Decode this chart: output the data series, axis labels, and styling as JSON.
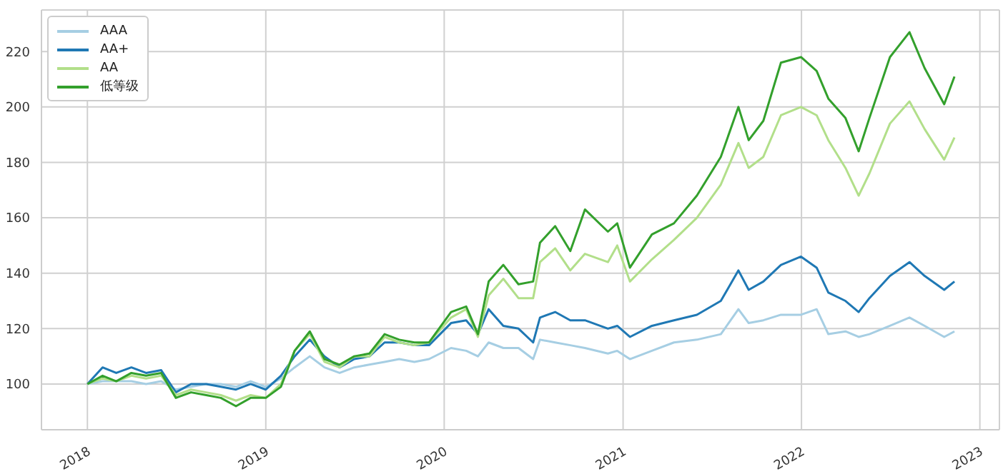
{
  "chart_data": {
    "type": "line",
    "x": [
      "2018-01-01",
      "2018-02-01",
      "2018-03-01",
      "2018-04-01",
      "2018-05-01",
      "2018-06-01",
      "2018-07-01",
      "2018-08-01",
      "2018-09-01",
      "2018-10-01",
      "2018-11-01",
      "2018-12-01",
      "2019-01-01",
      "2019-02-01",
      "2019-03-01",
      "2019-04-01",
      "2019-05-01",
      "2019-06-01",
      "2019-07-01",
      "2019-08-01",
      "2019-09-01",
      "2019-10-01",
      "2019-11-01",
      "2019-12-01",
      "2020-01-15",
      "2020-02-15",
      "2020-03-10",
      "2020-04-01",
      "2020-05-01",
      "2020-06-01",
      "2020-07-01",
      "2020-07-15",
      "2020-08-15",
      "2020-09-15",
      "2020-10-15",
      "2020-12-01",
      "2020-12-20",
      "2021-01-15",
      "2021-03-01",
      "2021-04-15",
      "2021-06-01",
      "2021-07-20",
      "2021-08-25",
      "2021-09-15",
      "2021-10-15",
      "2021-11-20",
      "2021-12-31",
      "2022-02-01",
      "2022-02-25",
      "2022-04-01",
      "2022-04-28",
      "2022-05-20",
      "2022-07-01",
      "2022-08-10",
      "2022-09-10",
      "2022-10-20",
      "2022-11-10"
    ],
    "series": [
      {
        "name": "AAA",
        "color": "#a6cee3",
        "values": [
          100,
          101,
          101,
          101,
          100,
          101,
          98,
          99,
          100,
          100,
          99,
          101,
          99,
          102,
          106,
          110,
          106,
          104,
          106,
          107,
          108,
          109,
          108,
          109,
          113,
          112,
          110,
          115,
          113,
          113,
          109,
          116,
          115,
          114,
          113,
          111,
          112,
          109,
          112,
          115,
          116,
          118,
          127,
          122,
          123,
          125,
          125,
          127,
          118,
          119,
          117,
          118,
          121,
          124,
          121,
          117,
          119
        ]
      },
      {
        "name": "AA+",
        "color": "#1f78b4",
        "values": [
          100,
          106,
          104,
          106,
          104,
          105,
          97,
          100,
          100,
          99,
          98,
          100,
          98,
          103,
          110,
          116,
          110,
          106,
          109,
          110,
          115,
          115,
          114,
          114,
          122,
          123,
          118,
          127,
          121,
          120,
          115,
          124,
          126,
          123,
          123,
          120,
          121,
          117,
          121,
          123,
          125,
          130,
          141,
          134,
          137,
          143,
          146,
          142,
          133,
          130,
          126,
          131,
          139,
          144,
          139,
          134,
          137
        ]
      },
      {
        "name": "AA",
        "color": "#b2df8a",
        "values": [
          100,
          102,
          101,
          103,
          102,
          103,
          96,
          98,
          97,
          96,
          94,
          96,
          95,
          100,
          112,
          118,
          108,
          106,
          110,
          110,
          117,
          115,
          114,
          115,
          124,
          127,
          117,
          132,
          138,
          131,
          131,
          144,
          149,
          141,
          147,
          144,
          150,
          137,
          145,
          152,
          160,
          172,
          187,
          178,
          182,
          197,
          200,
          197,
          188,
          178,
          168,
          176,
          194,
          202,
          192,
          181,
          189
        ]
      },
      {
        "name": "低等级",
        "color": "#33a02c",
        "values": [
          100,
          103,
          101,
          104,
          103,
          104,
          95,
          97,
          96,
          95,
          92,
          95,
          95,
          99,
          112,
          119,
          109,
          107,
          110,
          111,
          118,
          116,
          115,
          115,
          126,
          128,
          118,
          137,
          143,
          136,
          137,
          151,
          157,
          148,
          163,
          155,
          158,
          142,
          154,
          158,
          168,
          182,
          200,
          188,
          195,
          216,
          218,
          213,
          203,
          196,
          184,
          196,
          218,
          227,
          214,
          201,
          211
        ]
      }
    ],
    "xlim": [
      "2017-09-29",
      "2023-02-10"
    ],
    "xticks": [
      {
        "value": "2018-01-01",
        "label": "2018"
      },
      {
        "value": "2019-01-01",
        "label": "2019"
      },
      {
        "value": "2020-01-01",
        "label": "2020"
      },
      {
        "value": "2021-01-01",
        "label": "2021"
      },
      {
        "value": "2022-01-01",
        "label": "2022"
      },
      {
        "value": "2023-01-01",
        "label": "2023"
      }
    ],
    "ylim": [
      83.5,
      235
    ],
    "yticks": [
      100,
      120,
      140,
      160,
      180,
      200,
      220
    ],
    "grid": true,
    "legend": "top left"
  }
}
